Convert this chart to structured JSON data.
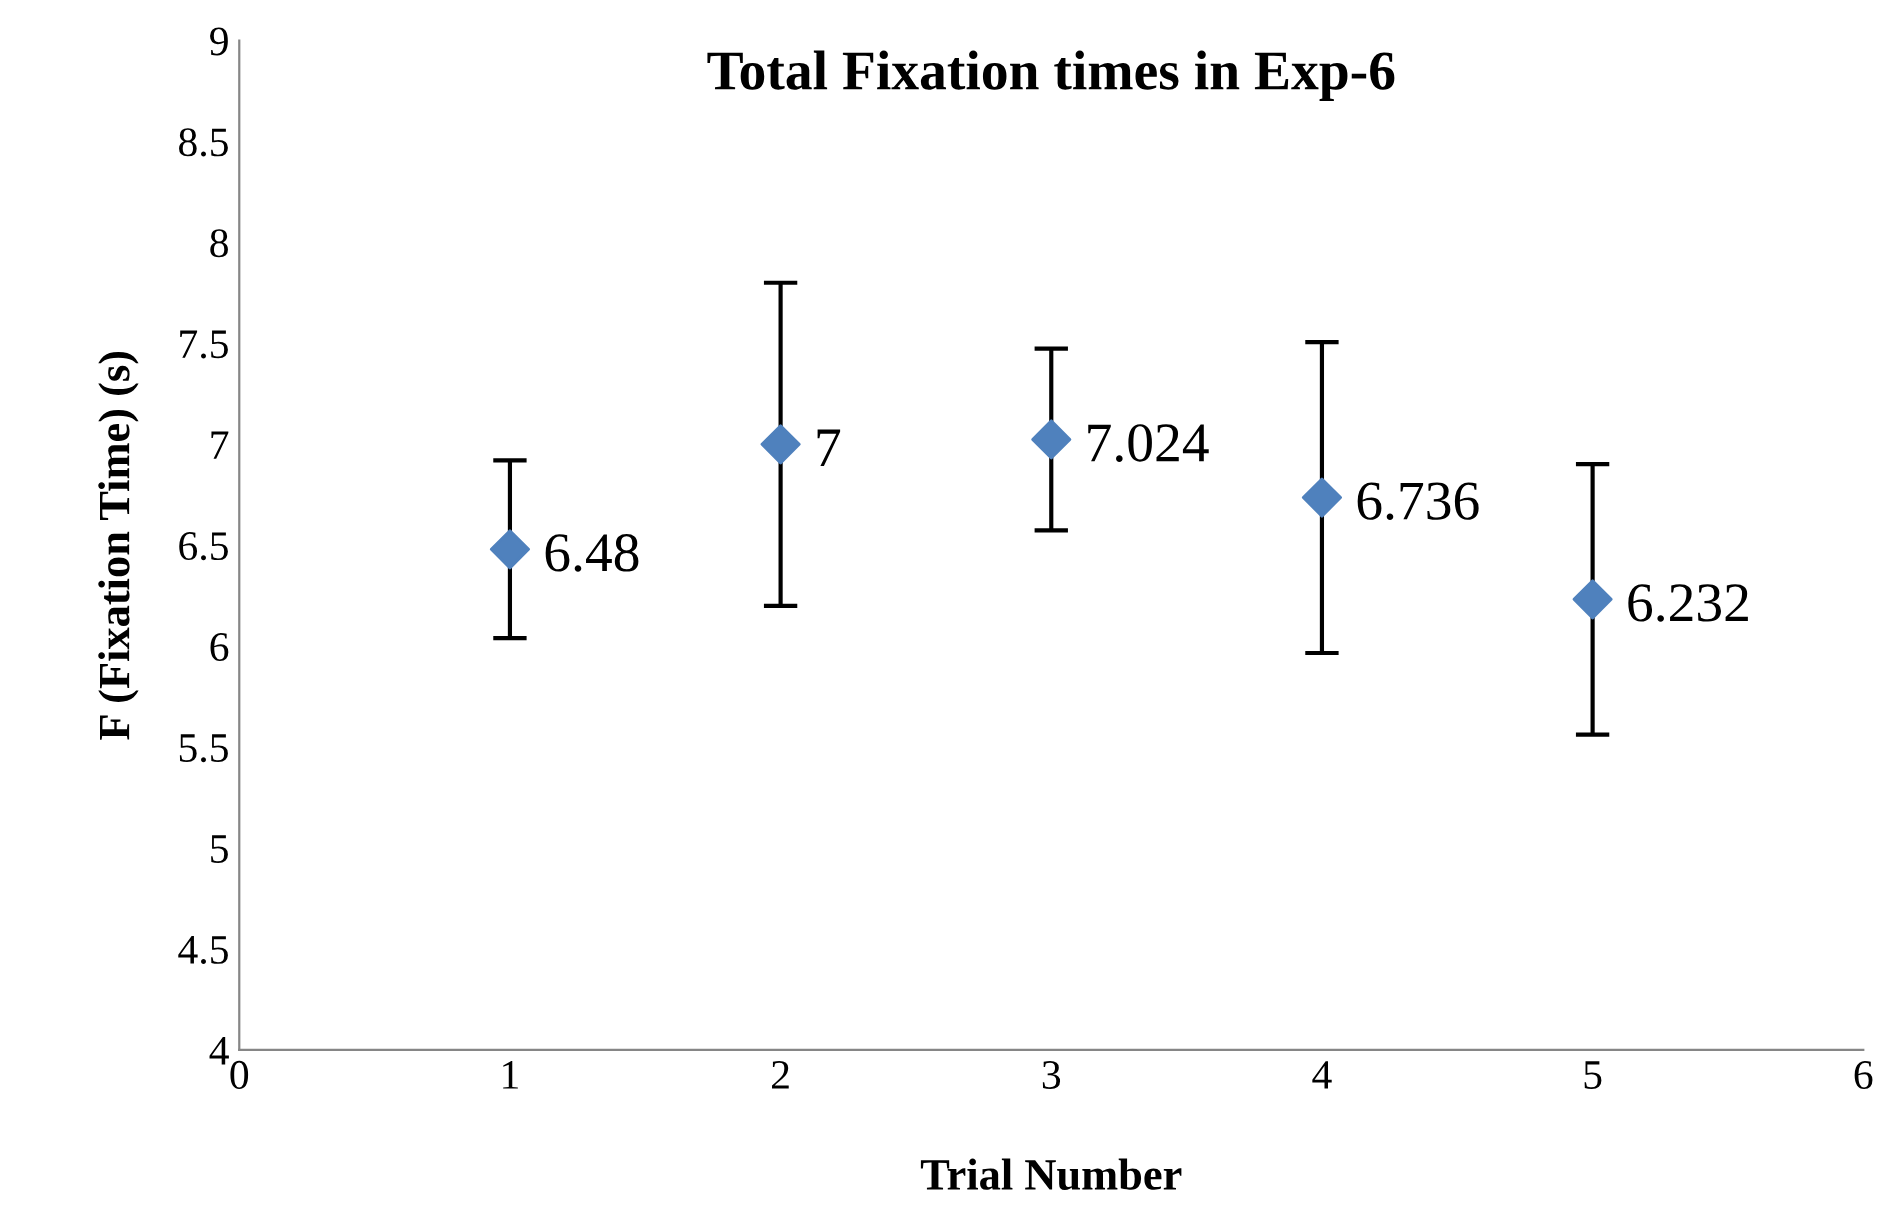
{
  "chart_data": {
    "type": "scatter",
    "title": "Total Fixation times in Exp-6",
    "xlabel": "Trial Number",
    "ylabel": "F (Fixation Time) (s)",
    "x": [
      1,
      2,
      3,
      4,
      5
    ],
    "series": [
      {
        "color": "#4f81bd",
        "values": [
          6.48,
          7,
          7.024,
          6.736,
          6.232
        ],
        "errors": [
          0.44,
          0.8,
          0.45,
          0.77,
          0.67
        ]
      }
    ],
    "xlim": [
      0,
      6
    ],
    "xticks": [
      0,
      1,
      2,
      3,
      4,
      5,
      6
    ],
    "ylim": [
      4,
      9
    ],
    "yticks": [
      4,
      4.5,
      5,
      5.5,
      6,
      6.5,
      7,
      7.5,
      8,
      8.5,
      9
    ],
    "data_labels": true,
    "marker": "diamond",
    "grid": false,
    "legend": false
  }
}
